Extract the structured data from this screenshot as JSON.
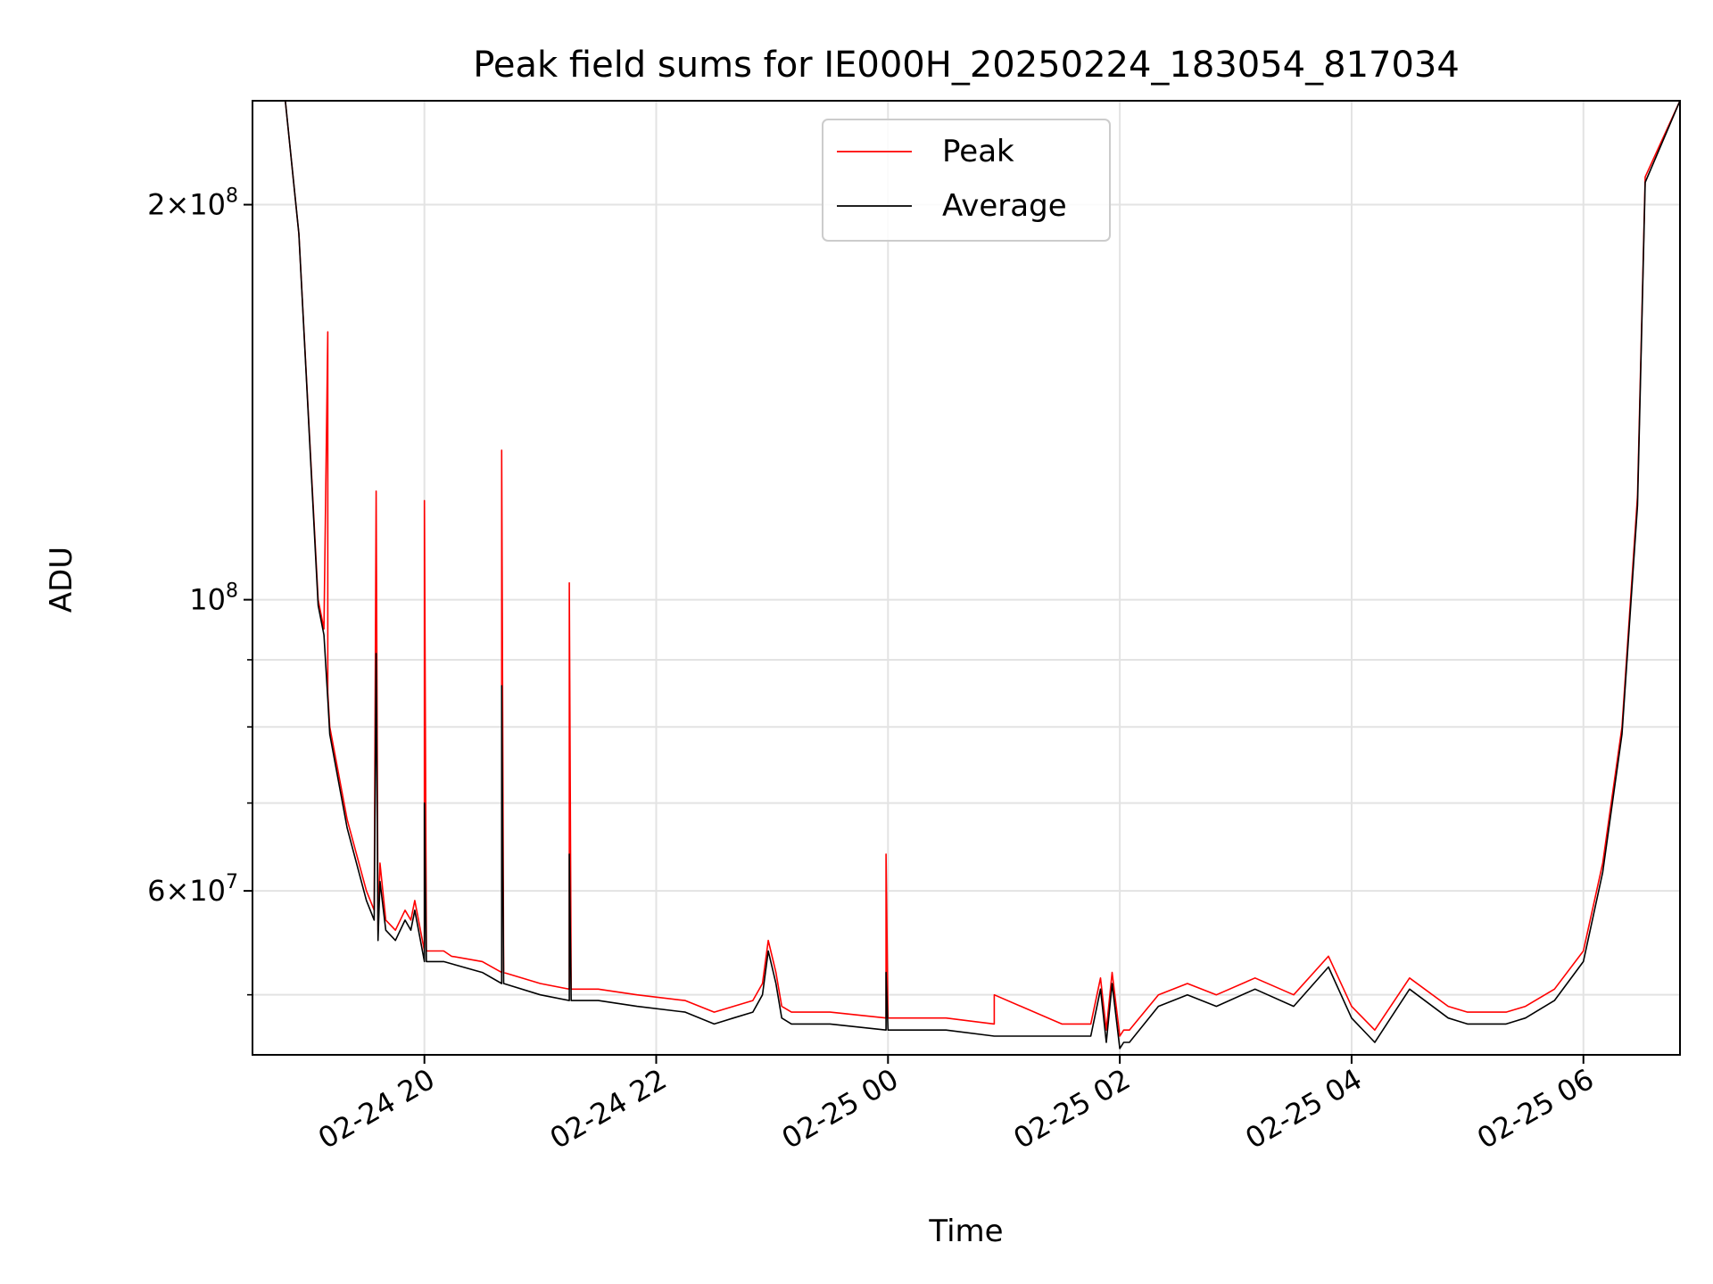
{
  "chart_data": {
    "type": "line",
    "title": "Peak field sums for IE000H_20250224_183054_817034",
    "xlabel": "Time",
    "ylabel": "ADU",
    "y_scale": "log",
    "ylim": [
      45000000,
      240000000
    ],
    "xlim": [
      "2025-02-24 18:31",
      "2025-02-25 06:50"
    ],
    "grid": true,
    "legend_position": "upper center",
    "x_ticks": [
      {
        "value": "2025-02-24 20:00",
        "label": "02-24 20"
      },
      {
        "value": "2025-02-24 22:00",
        "label": "02-24 22"
      },
      {
        "value": "2025-02-25 00:00",
        "label": "02-25 00"
      },
      {
        "value": "2025-02-25 02:00",
        "label": "02-25 02"
      },
      {
        "value": "2025-02-25 04:00",
        "label": "02-25 04"
      },
      {
        "value": "2025-02-25 06:00",
        "label": "02-25 06"
      }
    ],
    "y_major_ticks": [
      {
        "value": 60000000,
        "mant": "6",
        "base": "×10",
        "exp": "7"
      },
      {
        "value": 100000000,
        "mant": "",
        "base": "10",
        "exp": "8"
      },
      {
        "value": 200000000,
        "mant": "2",
        "base": "×10",
        "exp": "8"
      }
    ],
    "y_minor_ticks": [
      50000000,
      70000000,
      80000000,
      90000000
    ],
    "series": [
      {
        "name": "Peak",
        "color": "#ff0000",
        "x": [
          "2025-02-24 18:31",
          "2025-02-24 18:48",
          "2025-02-24 18:55",
          "2025-02-24 19:05",
          "2025-02-24 19:08",
          "2025-02-24 19:10",
          "2025-02-24 19:10",
          "2025-02-24 19:11",
          "2025-02-24 19:20",
          "2025-02-24 19:30",
          "2025-02-24 19:34",
          "2025-02-24 19:35",
          "2025-02-24 19:36",
          "2025-02-24 19:37",
          "2025-02-24 19:40",
          "2025-02-24 19:45",
          "2025-02-24 19:50",
          "2025-02-24 19:53",
          "2025-02-24 19:55",
          "2025-02-24 20:00",
          "2025-02-24 20:00",
          "2025-02-24 20:01",
          "2025-02-24 20:10",
          "2025-02-24 20:14",
          "2025-02-24 20:30",
          "2025-02-24 20:40",
          "2025-02-24 20:40",
          "2025-02-24 20:41",
          "2025-02-24 21:00",
          "2025-02-24 21:15",
          "2025-02-24 21:15",
          "2025-02-24 21:16",
          "2025-02-24 21:30",
          "2025-02-24 21:50",
          "2025-02-24 22:15",
          "2025-02-24 22:30",
          "2025-02-24 22:40",
          "2025-02-24 22:50",
          "2025-02-24 22:55",
          "2025-02-24 22:58",
          "2025-02-24 23:02",
          "2025-02-24 23:05",
          "2025-02-24 23:10",
          "2025-02-24 23:30",
          "2025-02-24 23:59",
          "2025-02-24 23:59",
          "2025-02-25 00:00",
          "2025-02-25 00:30",
          "2025-02-25 00:55",
          "2025-02-25 00:55",
          "2025-02-25 01:30",
          "2025-02-25 01:45",
          "2025-02-25 01:50",
          "2025-02-25 01:53",
          "2025-02-25 01:56",
          "2025-02-25 02:00",
          "2025-02-25 02:02",
          "2025-02-25 02:05",
          "2025-02-25 02:20",
          "2025-02-25 02:35",
          "2025-02-25 02:50",
          "2025-02-25 03:10",
          "2025-02-25 03:30",
          "2025-02-25 03:48",
          "2025-02-25 04:00",
          "2025-02-25 04:12",
          "2025-02-25 04:30",
          "2025-02-25 04:50",
          "2025-02-25 05:00",
          "2025-02-25 05:20",
          "2025-02-25 05:30",
          "2025-02-25 05:45",
          "2025-02-25 06:00",
          "2025-02-25 06:10",
          "2025-02-25 06:20",
          "2025-02-25 06:28",
          "2025-02-25 06:32",
          "2025-02-25 06:50"
        ],
        "y": [
          240000000,
          240000000,
          190000000,
          100000000,
          95000000,
          160000000,
          85000000,
          80000000,
          68000000,
          60000000,
          58000000,
          121000000,
          56000000,
          63000000,
          57000000,
          56000000,
          58000000,
          57000000,
          59000000,
          54000000,
          119000000,
          54000000,
          54000000,
          53500000,
          53000000,
          52000000,
          130000000,
          52000000,
          51000000,
          50500000,
          103000000,
          50500000,
          50500000,
          50000000,
          49500000,
          48500000,
          49000000,
          49500000,
          51000000,
          55000000,
          52000000,
          49000000,
          48500000,
          48500000,
          48000000,
          64000000,
          48000000,
          48000000,
          47500000,
          50000000,
          47500000,
          47500000,
          51500000,
          47000000,
          52000000,
          46500000,
          47000000,
          47000000,
          50000000,
          51000000,
          50000000,
          51500000,
          50000000,
          53500000,
          49000000,
          47000000,
          51500000,
          49000000,
          48500000,
          48500000,
          49000000,
          50500000,
          54000000,
          63000000,
          80000000,
          120000000,
          210000000,
          240000000
        ]
      },
      {
        "name": "Average",
        "color": "#000000",
        "x": [
          "2025-02-24 18:31",
          "2025-02-24 18:48",
          "2025-02-24 18:55",
          "2025-02-24 19:05",
          "2025-02-24 19:08",
          "2025-02-24 19:10",
          "2025-02-24 19:11",
          "2025-02-24 19:20",
          "2025-02-24 19:30",
          "2025-02-24 19:34",
          "2025-02-24 19:35",
          "2025-02-24 19:36",
          "2025-02-24 19:37",
          "2025-02-24 19:40",
          "2025-02-24 19:45",
          "2025-02-24 19:50",
          "2025-02-24 19:53",
          "2025-02-24 19:55",
          "2025-02-24 20:00",
          "2025-02-24 20:00",
          "2025-02-24 20:01",
          "2025-02-24 20:10",
          "2025-02-24 20:30",
          "2025-02-24 20:40",
          "2025-02-24 20:40",
          "2025-02-24 20:41",
          "2025-02-24 21:00",
          "2025-02-24 21:15",
          "2025-02-24 21:15",
          "2025-02-24 21:16",
          "2025-02-24 21:30",
          "2025-02-24 21:50",
          "2025-02-24 22:15",
          "2025-02-24 22:30",
          "2025-02-24 22:40",
          "2025-02-24 22:50",
          "2025-02-24 22:55",
          "2025-02-24 22:58",
          "2025-02-24 23:02",
          "2025-02-24 23:05",
          "2025-02-24 23:10",
          "2025-02-24 23:30",
          "2025-02-24 23:59",
          "2025-02-24 23:59",
          "2025-02-25 00:00",
          "2025-02-25 00:30",
          "2025-02-25 00:55",
          "2025-02-25 01:30",
          "2025-02-25 01:45",
          "2025-02-25 01:50",
          "2025-02-25 01:53",
          "2025-02-25 01:56",
          "2025-02-25 02:00",
          "2025-02-25 02:02",
          "2025-02-25 02:05",
          "2025-02-25 02:20",
          "2025-02-25 02:35",
          "2025-02-25 02:50",
          "2025-02-25 03:10",
          "2025-02-25 03:30",
          "2025-02-25 03:48",
          "2025-02-25 04:00",
          "2025-02-25 04:12",
          "2025-02-25 04:30",
          "2025-02-25 04:50",
          "2025-02-25 05:00",
          "2025-02-25 05:20",
          "2025-02-25 05:30",
          "2025-02-25 05:45",
          "2025-02-25 06:00",
          "2025-02-25 06:10",
          "2025-02-25 06:20",
          "2025-02-25 06:28",
          "2025-02-25 06:32",
          "2025-02-25 06:50"
        ],
        "y": [
          240000000,
          240000000,
          190000000,
          99000000,
          94000000,
          84000000,
          79000000,
          67000000,
          59000000,
          57000000,
          91000000,
          55000000,
          61000000,
          56000000,
          55000000,
          57000000,
          56000000,
          58000000,
          53000000,
          70000000,
          53000000,
          53000000,
          52000000,
          51000000,
          86000000,
          51000000,
          50000000,
          49500000,
          64000000,
          49500000,
          49500000,
          49000000,
          48500000,
          47500000,
          48000000,
          48500000,
          50000000,
          54000000,
          51000000,
          48000000,
          47500000,
          47500000,
          47000000,
          52000000,
          47000000,
          47000000,
          46500000,
          46500000,
          46500000,
          50500000,
          46000000,
          51000000,
          45500000,
          46000000,
          46000000,
          49000000,
          50000000,
          49000000,
          50500000,
          49000000,
          52500000,
          48000000,
          46000000,
          50500000,
          48000000,
          47500000,
          47500000,
          48000000,
          49500000,
          53000000,
          62000000,
          79000000,
          118000000,
          208000000,
          240000000
        ]
      }
    ]
  }
}
